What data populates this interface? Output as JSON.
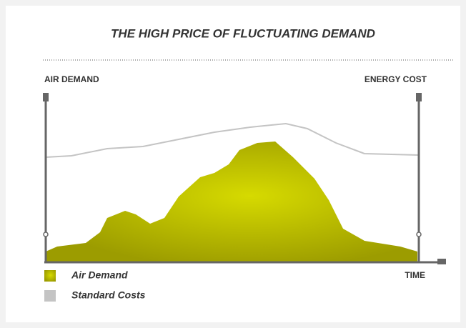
{
  "title": "THE HIGH PRICE OF FLUCTUATING DEMAND",
  "axes": {
    "left": "AIR DEMAND",
    "right": "ENERGY COST",
    "bottom": "TIME"
  },
  "legend": [
    "Air Demand",
    "Standard Costs"
  ]
}
